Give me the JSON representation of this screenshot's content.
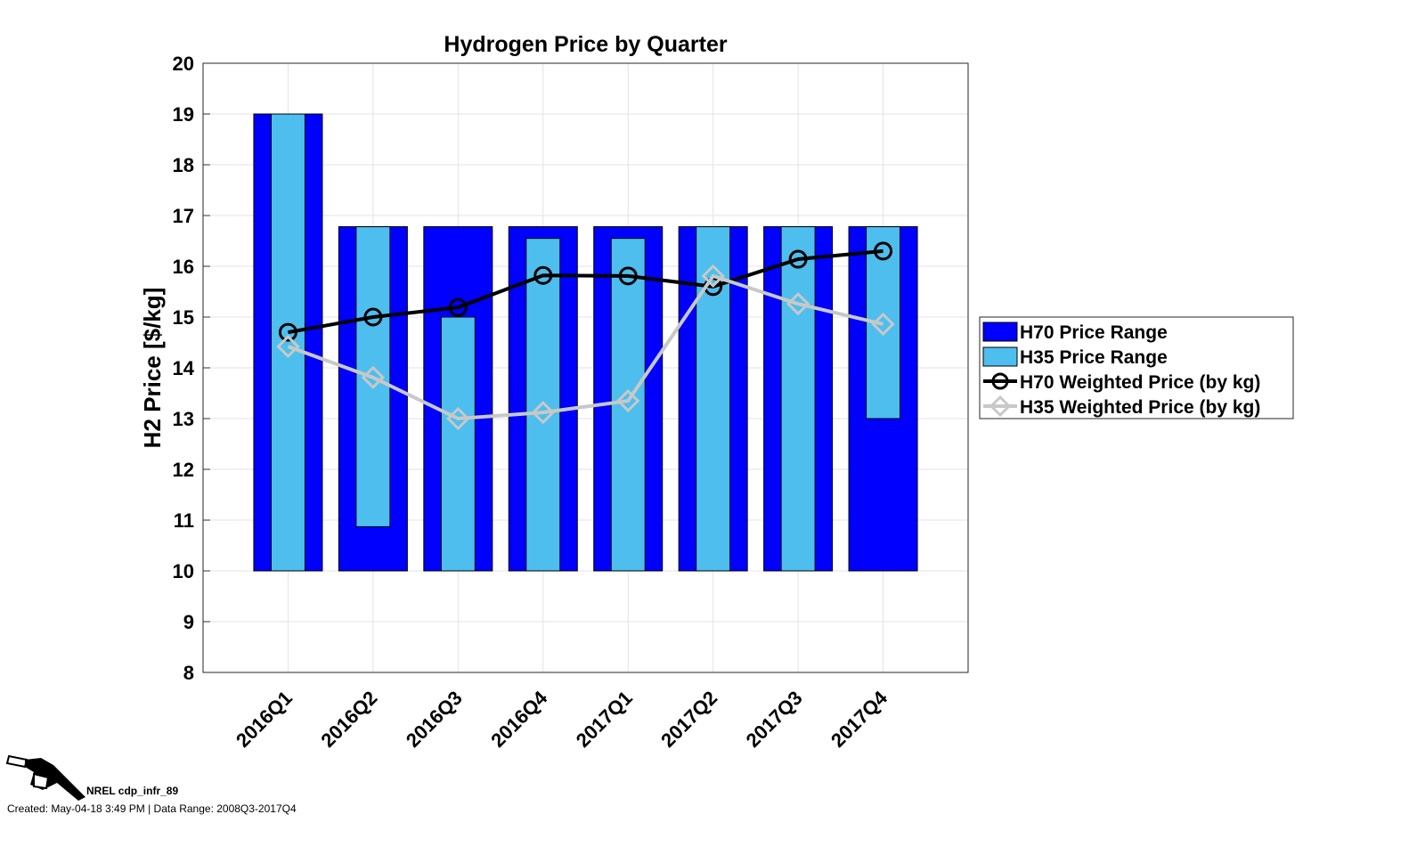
{
  "chart_data": {
    "type": "bar",
    "title": "Hydrogen Price by Quarter",
    "xlabel": "",
    "ylabel": "H2 Price [$/kg]",
    "ylim": [
      8,
      20
    ],
    "yticks": [
      "8",
      "9",
      "10",
      "11",
      "12",
      "13",
      "14",
      "15",
      "16",
      "17",
      "18",
      "19",
      "20"
    ],
    "grid": true,
    "legend_position": "outside-right",
    "categories": [
      "2016Q1",
      "2016Q2",
      "2016Q3",
      "2016Q4",
      "2017Q1",
      "2017Q2",
      "2017Q3",
      "2017Q4"
    ],
    "ranges": [
      {
        "name": "H70 Price Range",
        "color": "#0000ff",
        "low": [
          10,
          10,
          10,
          10,
          10,
          10,
          10,
          10
        ],
        "high": [
          19,
          16.78,
          16.78,
          16.78,
          16.78,
          16.78,
          16.78,
          16.78
        ]
      },
      {
        "name": "H35 Price Range",
        "color": "#4dbeee",
        "low": [
          10,
          10.87,
          10,
          10,
          10,
          10,
          10,
          13
        ],
        "high": [
          19,
          16.78,
          15,
          16.55,
          16.55,
          16.78,
          16.78,
          16.78
        ]
      }
    ],
    "series": [
      {
        "name": "H70 Weighted Price (by kg)",
        "color": "#000000",
        "marker": "circle",
        "values": [
          14.7,
          15.0,
          15.19,
          15.82,
          15.81,
          15.6,
          16.14,
          16.3
        ]
      },
      {
        "name": "H35 Weighted Price (by kg)",
        "color": "#c8c8c8",
        "marker": "diamond",
        "values": [
          14.42,
          13.81,
          13.0,
          13.12,
          13.35,
          15.81,
          15.26,
          14.86
        ]
      }
    ]
  },
  "footer": {
    "id_label": "NREL cdp_infr_89",
    "created": "Created: May-04-18  3:49 PM | Data Range: 2008Q3-2017Q4"
  }
}
